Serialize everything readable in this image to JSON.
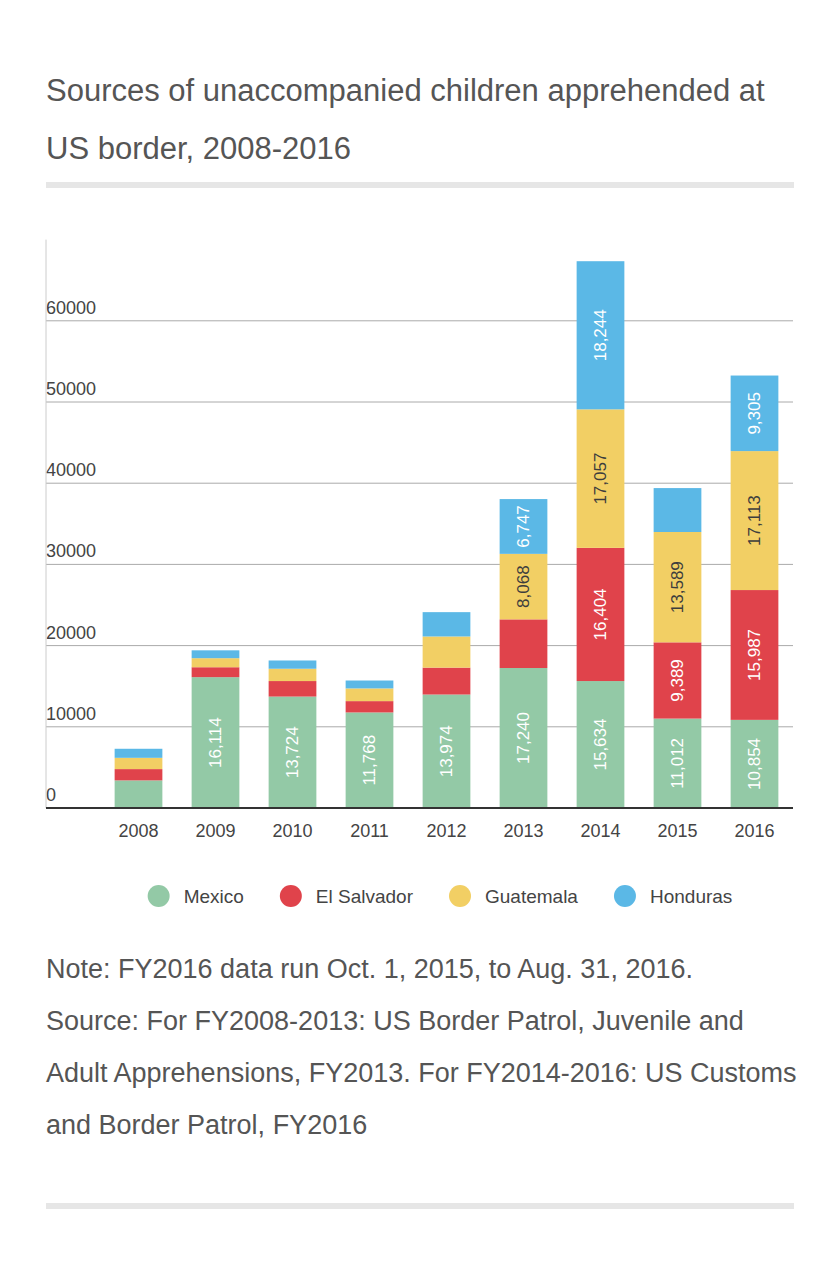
{
  "chart_data": {
    "type": "bar",
    "stacked": true,
    "data_labels": true,
    "grid": true,
    "legend": "bottom",
    "title": "Sources of unaccompanied children apprehended at US border, 2008-2016",
    "annotations": [
      "Note: FY2016 data run Oct. 1, 2015, to Aug. 31, 2016.",
      "Source: For FY2008-2013: US Border Patrol, Juvenile and Adult Apprehensions, FY2013. For FY2014-2016: US Customs and Border Patrol, FY2016"
    ],
    "categories": [
      "2008",
      "2009",
      "2010",
      "2011",
      "2012",
      "2013",
      "2014",
      "2015",
      "2016"
    ],
    "ylim": [
      0,
      70000
    ],
    "yticks": [
      0,
      10000,
      20000,
      30000,
      40000,
      50000,
      60000
    ],
    "series": [
      {
        "name": "Mexico",
        "color": "#93c9a6",
        "values": [
          3400,
          16114,
          13724,
          11768,
          13974,
          17240,
          15634,
          11012,
          10854
        ],
        "value_labels": [
          null,
          "16,114",
          "13,724",
          "11,768",
          "13,974",
          "17,240",
          "15,634",
          "11,012",
          "10,854"
        ]
      },
      {
        "name": "El Salvador",
        "color": "#e0434b",
        "values": [
          1391,
          1221,
          1910,
          1394,
          3314,
          5990,
          16404,
          9389,
          15987
        ],
        "value_labels": [
          null,
          null,
          null,
          null,
          null,
          null,
          "16,404",
          "9,389",
          "15,987"
        ]
      },
      {
        "name": "Guatemala",
        "color": "#f2cf64",
        "values": [
          1388,
          1115,
          1517,
          1565,
          3835,
          8068,
          17057,
          13589,
          17113
        ],
        "value_labels": [
          null,
          null,
          null,
          null,
          null,
          "8,068",
          "17,057",
          "13,589",
          "17,113"
        ]
      },
      {
        "name": "Honduras",
        "color": "#5bb8e6",
        "values": [
          1115,
          968,
          1017,
          974,
          2997,
          6747,
          18244,
          5409,
          9305
        ],
        "value_labels": [
          null,
          null,
          null,
          null,
          null,
          "6,747",
          "18,244",
          null,
          "9,305"
        ]
      }
    ]
  }
}
